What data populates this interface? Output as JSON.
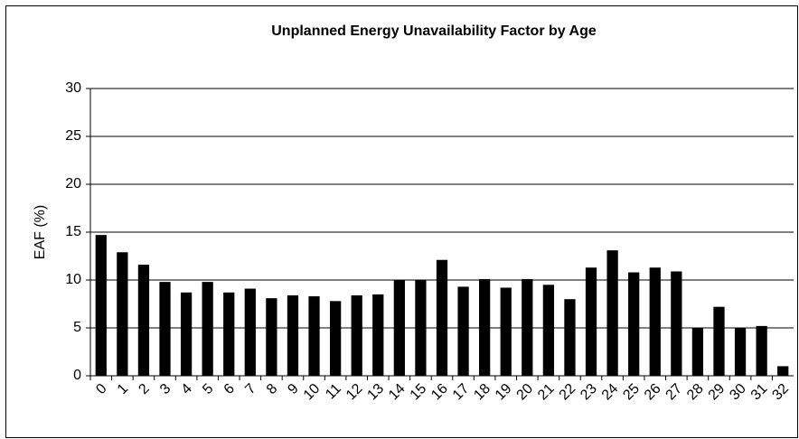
{
  "chart_data": {
    "type": "bar",
    "title": "Unplanned Energy Unavailability Factor by Age",
    "y_label": "EAF (%)",
    "categories": [
      "0",
      "1",
      "2",
      "3",
      "4",
      "5",
      "6",
      "7",
      "8",
      "9",
      "10",
      "11",
      "12",
      "13",
      "14",
      "15",
      "16",
      "17",
      "18",
      "19",
      "20",
      "21",
      "22",
      "23",
      "24",
      "25",
      "26",
      "27",
      "28",
      "29",
      "30",
      "31",
      "32"
    ],
    "values": [
      14.7,
      12.9,
      11.6,
      9.8,
      8.7,
      9.8,
      8.7,
      9.1,
      8.1,
      8.4,
      8.3,
      7.8,
      8.4,
      8.5,
      10.0,
      10.0,
      12.1,
      9.3,
      10.1,
      9.2,
      10.1,
      9.5,
      8.0,
      11.3,
      13.1,
      10.8,
      11.3,
      10.9,
      5.0,
      7.2,
      5.0,
      5.2,
      1.0
    ],
    "color": "#000000",
    "ylim": [
      0,
      30
    ],
    "yticks": [
      0,
      5,
      10,
      15,
      20,
      25,
      30
    ],
    "grid": true
  }
}
